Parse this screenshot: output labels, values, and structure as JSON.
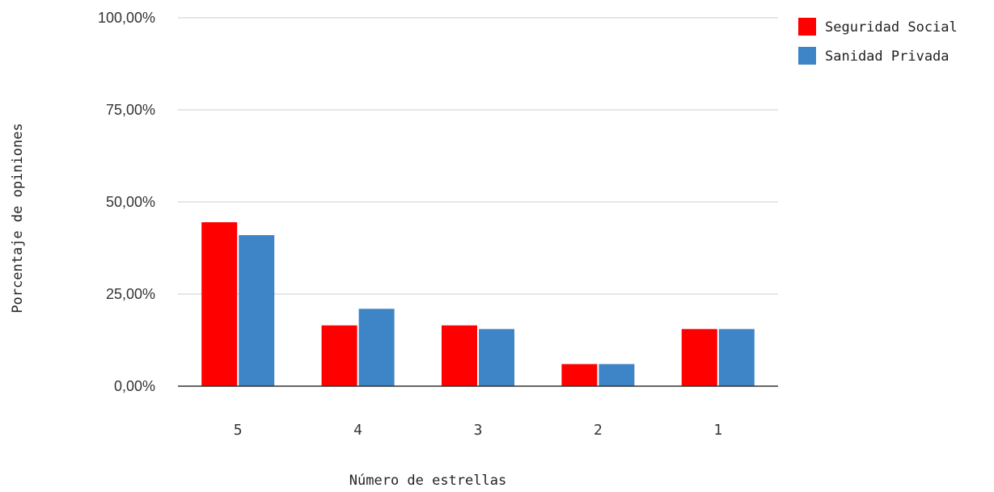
{
  "chart_data": {
    "type": "bar",
    "title": "",
    "xlabel": "Número de estrellas",
    "ylabel": "Porcentaje de opiniones",
    "categories": [
      "5",
      "4",
      "3",
      "2",
      "1"
    ],
    "series": [
      {
        "name": "Seguridad Social",
        "color": "#ff0000",
        "values": [
          44.5,
          16.5,
          16.5,
          6.0,
          15.5
        ]
      },
      {
        "name": "Sanidad Privada",
        "color": "#3d85c6",
        "values": [
          41.0,
          21.0,
          15.5,
          6.0,
          15.5
        ]
      }
    ],
    "ylim": [
      0,
      100
    ],
    "yticks": [
      0,
      25,
      50,
      75,
      100
    ],
    "ytick_labels": [
      "0,00%",
      "25,00%",
      "50,00%",
      "75,00%",
      "100,00%"
    ],
    "grid": true,
    "legend_position": "top-right"
  }
}
